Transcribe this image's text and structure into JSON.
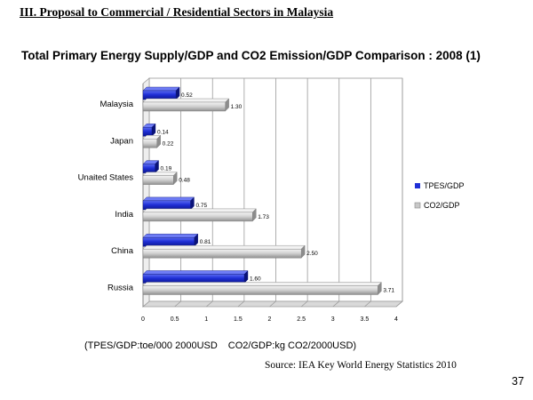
{
  "slide": {
    "section_title": "III. Proposal to Commercial / Residential Sectors in Malaysia",
    "chart_title": "Total Primary Energy Supply/GDP and CO2 Emission/GDP Comparison : 2008 (1)",
    "units_tpes": "(TPES/GDP:toe/000 2000USD",
    "units_co2": "CO2/GDP:kg CO2/2000USD)",
    "source": "Source: IEA Key World Energy Statistics 2010",
    "page_number": "37"
  },
  "colors": {
    "tpes": "#1f2fd6",
    "co2": "#c8c8c8",
    "grid": "#9a9a9a"
  },
  "chart_data": {
    "type": "bar",
    "orientation": "horizontal",
    "title": "Total Primary Energy Supply/GDP and CO2 Emission/GDP Comparison : 2008 (1)",
    "categories": [
      "Malaysia",
      "Japan",
      "Unaited States",
      "India",
      "China",
      "Russia"
    ],
    "series": [
      {
        "name": "TPES/GDP",
        "values": [
          0.52,
          0.14,
          0.19,
          0.75,
          0.81,
          1.6
        ]
      },
      {
        "name": "CO2/GDP",
        "values": [
          1.3,
          0.22,
          0.48,
          1.73,
          2.5,
          3.71
        ]
      }
    ],
    "value_labels": [
      [
        "0.52",
        "0.14",
        "0.19",
        "0.75",
        "0.81",
        "1.60"
      ],
      [
        "1.30",
        "0.22",
        "0.48",
        "1.73",
        "2.50",
        "3.71"
      ]
    ],
    "xlim": [
      0,
      4
    ],
    "xticks": [
      0,
      0.5,
      1,
      1.5,
      2,
      2.5,
      3,
      3.5,
      4
    ],
    "xtick_labels": [
      "0",
      "0.5",
      "1",
      "1.5",
      "2",
      "2.5",
      "3",
      "3.5",
      "4"
    ],
    "grid": true,
    "legend": "right"
  }
}
